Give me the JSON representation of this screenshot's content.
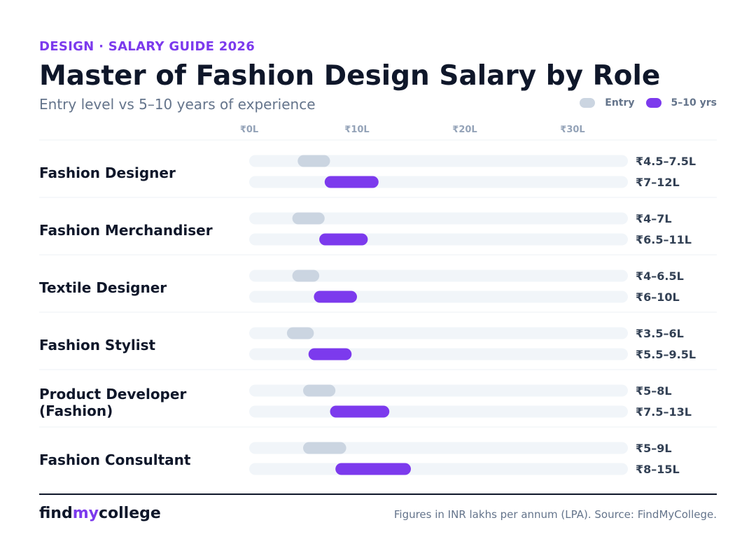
{
  "header": {
    "eyebrow": "DESIGN · SALARY GUIDE 2026",
    "title": "Master of Fashion Design Salary by Role",
    "subtitle": "Entry level vs 5–10 years of experience"
  },
  "legend": {
    "entry_label": "Entry",
    "senior_label": "5–10 yrs"
  },
  "colors": {
    "entry": "#cbd5e1",
    "senior": "#7c3aed",
    "track": "#f1f5f9",
    "accent": "#7c3aed"
  },
  "chart_data": {
    "type": "range-bar",
    "unit": "INR lakhs per annum",
    "xlim": [
      0,
      35
    ],
    "ticks": [
      {
        "value": 0,
        "label": "₹0L"
      },
      {
        "value": 10,
        "label": "₹10L"
      },
      {
        "value": 20,
        "label": "₹20L"
      },
      {
        "value": 30,
        "label": "₹30L"
      }
    ],
    "legend_position": "top-right",
    "grid": false,
    "series": [
      {
        "name": "Entry",
        "key": "entry"
      },
      {
        "name": "5–10 yrs",
        "key": "senior"
      }
    ],
    "roles": [
      {
        "name": [
          "Fashion Designer"
        ],
        "entry": [
          4.5,
          7.5
        ],
        "entry_label": "₹4.5–7.5L",
        "senior": [
          7,
          12
        ],
        "senior_label": "₹7–12L"
      },
      {
        "name": [
          "Fashion Merchandiser"
        ],
        "entry": [
          4,
          7
        ],
        "entry_label": "₹4–7L",
        "senior": [
          6.5,
          11
        ],
        "senior_label": "₹6.5–11L"
      },
      {
        "name": [
          "Textile Designer"
        ],
        "entry": [
          4,
          6.5
        ],
        "entry_label": "₹4–6.5L",
        "senior": [
          6,
          10
        ],
        "senior_label": "₹6–10L"
      },
      {
        "name": [
          "Fashion Stylist"
        ],
        "entry": [
          3.5,
          6
        ],
        "entry_label": "₹3.5–6L",
        "senior": [
          5.5,
          9.5
        ],
        "senior_label": "₹5.5–9.5L"
      },
      {
        "name": [
          "Product Developer",
          "(Fashion)"
        ],
        "entry": [
          5,
          8
        ],
        "entry_label": "₹5–8L",
        "senior": [
          7.5,
          13
        ],
        "senior_label": "₹7.5–13L"
      },
      {
        "name": [
          "Fashion Consultant"
        ],
        "entry": [
          5,
          9
        ],
        "entry_label": "₹5–9L",
        "senior": [
          8,
          15
        ],
        "senior_label": "₹8–15L"
      }
    ]
  },
  "footer": {
    "brand_pre": "find",
    "brand_mid": "my",
    "brand_post": "college",
    "source": "Figures in INR lakhs per annum (LPA). Source: FindMyCollege."
  }
}
